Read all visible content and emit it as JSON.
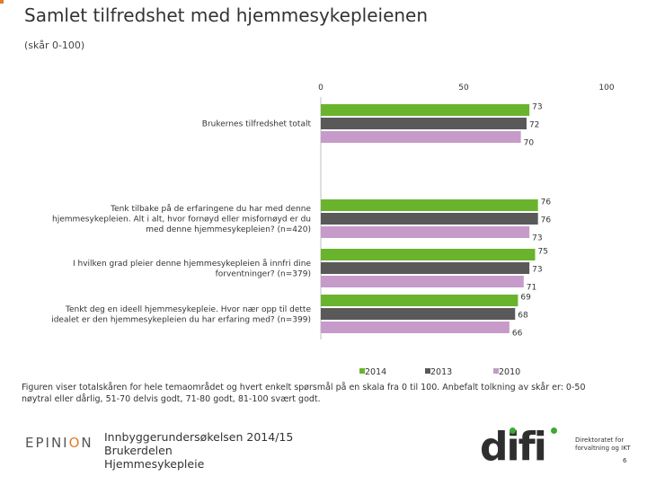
{
  "header": {
    "title": "Samlet tilfredshet med hjemmesykepleienen",
    "subtitle": "(skår 0-100)"
  },
  "chart_data": {
    "type": "bar",
    "orientation": "horizontal",
    "xlim": [
      0,
      100
    ],
    "ticks": [
      "0",
      "50",
      "100"
    ],
    "tick_values": [
      0,
      50,
      100
    ],
    "categories": [
      [
        "Brukernes tilfredshet totalt"
      ],
      [
        "Tenk tilbake på de erfaringene du har med denne",
        "hjemmesykepleien. Alt i alt, hvor fornøyd eller misfornøyd er du",
        "med denne hjemmesykepleien? (n=420)"
      ],
      [
        "I hvilken grad pleier denne hjemmesykepleien å innfri dine",
        "forventninger? (n=379)"
      ],
      [
        "Tenkt deg en ideell hjemmesykepleie. Hvor nær opp til dette",
        "idealet er den hjemmesykepleien du har erfaring med? (n=399)"
      ]
    ],
    "series": [
      {
        "name": "2014",
        "color": "#6ab42d",
        "values": [
          73,
          76,
          75,
          69
        ]
      },
      {
        "name": "2013",
        "color": "#595959",
        "values": [
          72,
          76,
          73,
          68
        ]
      },
      {
        "name": "2010",
        "color": "#c69bc9",
        "values": [
          70,
          73,
          71,
          66
        ]
      }
    ],
    "legend_position": "bottom"
  },
  "footnote": "Figuren viser totalskåren for hele temaområdet og hvert enkelt spørsmål på en skala fra 0 til 100. Anbefalt tolkning av skår er: 0-50 nøytral eller dårlig, 51-70 delvis godt, 71-80 godt, 81-100 svært godt.",
  "footer": {
    "epinion_a": "EPINI",
    "epinion_dot": "O",
    "epinion_b": "N",
    "survey_line1": "Innbyggerundersøkelsen 2014/15",
    "survey_line2": "Brukerdelen",
    "survey_line3": "Hjemmesykepleie",
    "difi_word": "difi",
    "difi_org_line1": "Direktoratet for",
    "difi_org_line2": "forvaltning og IKT",
    "page_number": "6"
  }
}
